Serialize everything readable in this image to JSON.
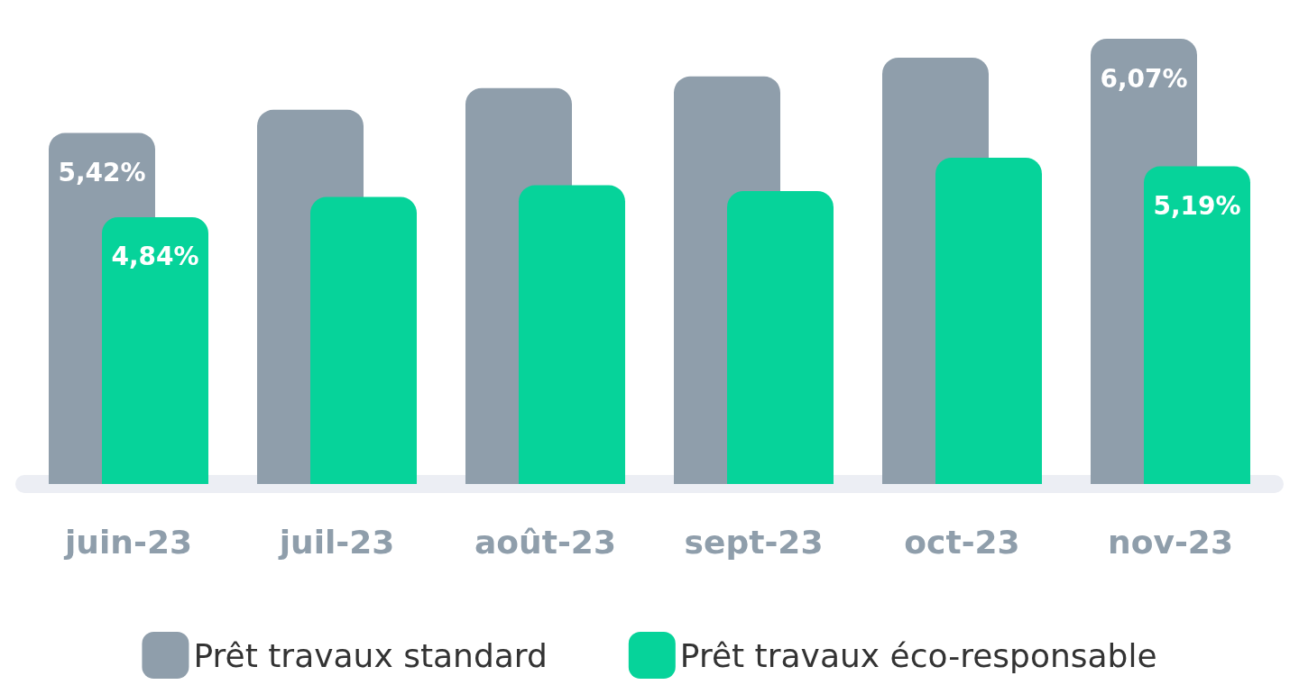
{
  "chart_data": {
    "type": "bar",
    "categories": [
      "juin-23",
      "juil-23",
      "août-23",
      "sept-23",
      "oct-23",
      "nov-23"
    ],
    "series": [
      {
        "name": "Prêt travaux standard",
        "color": "#8f9eab",
        "values": [
          5.42,
          5.58,
          5.73,
          5.81,
          5.94,
          6.07
        ],
        "value_labels": [
          "5,42%",
          null,
          null,
          null,
          null,
          "6,07%"
        ]
      },
      {
        "name": "Prêt travaux éco-responsable",
        "color": "#06d39a",
        "values": [
          4.84,
          4.98,
          5.06,
          5.02,
          5.25,
          5.19
        ],
        "value_labels": [
          "4,84%",
          null,
          null,
          null,
          null,
          "5,19%"
        ]
      }
    ],
    "ylim": [
      3,
      6.07
    ],
    "tick_labels": "x",
    "legend": "bottom"
  }
}
